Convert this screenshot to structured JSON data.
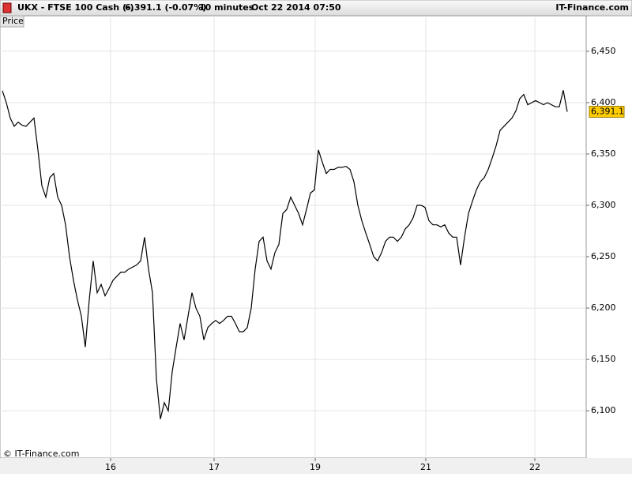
{
  "header": {
    "symbol": "UKX - FTSE 100 Cash (-)",
    "quote": "6,391.1 (-0.07%)",
    "interval": "10 minutes",
    "datetime": "Oct 22 2014 07:50",
    "brand": "IT-Finance.com"
  },
  "footer": {
    "copyright": "© IT-Finance.com"
  },
  "chart_data": {
    "type": "line",
    "grid": true,
    "series": [
      {
        "name": "Price",
        "color": "#000000",
        "values": [
          6411.5,
          6400,
          6385,
          6377,
          6381,
          6378,
          6377,
          6381,
          6385,
          6354,
          6319,
          6308,
          6327,
          6331,
          6308,
          6300,
          6281,
          6250,
          6227,
          6208,
          6192,
          6162,
          6208,
          6246,
          6215,
          6223,
          6212,
          6219,
          6227,
          6231,
          6235,
          6235,
          6238,
          6240,
          6242,
          6246,
          6269,
          6238,
          6215,
          6131,
          6092,
          6108,
          6100,
          6138,
          6162,
          6185,
          6169,
          6192,
          6215,
          6200,
          6192,
          6169,
          6181,
          6185,
          6188,
          6185,
          6188,
          6192,
          6192,
          6185,
          6177,
          6177,
          6181,
          6200,
          6238,
          6265,
          6269,
          6246,
          6238,
          6254,
          6262,
          6292,
          6296,
          6308,
          6300,
          6292,
          6281,
          6296,
          6312,
          6315,
          6354,
          6342,
          6331,
          6335,
          6335,
          6337,
          6337,
          6338,
          6335,
          6323,
          6300,
          6285,
          6273,
          6262,
          6250,
          6246,
          6254,
          6265,
          6269,
          6269,
          6265,
          6269,
          6277,
          6281,
          6288,
          6300,
          6300,
          6298,
          6285,
          6281,
          6281,
          6279,
          6281,
          6273,
          6269,
          6269,
          6242,
          6269,
          6292,
          6304,
          6315,
          6323,
          6327,
          6335,
          6346,
          6358,
          6373,
          6377,
          6381,
          6385,
          6392,
          6404,
          6408,
          6398,
          6400,
          6402,
          6400,
          6398,
          6400,
          6398,
          6396,
          6396,
          6412,
          6391.1
        ]
      }
    ],
    "last_label": {
      "value": 6391.1,
      "label": "6,391.1"
    },
    "xlim": [
      -0.6,
      147.8
    ],
    "xticks": [
      {
        "value": 27.4,
        "label": "16"
      },
      {
        "value": 53.6,
        "label": "17"
      },
      {
        "value": 79.2,
        "label": "19"
      },
      {
        "value": 107.2,
        "label": "21"
      },
      {
        "value": 134.8,
        "label": "22"
      }
    ],
    "ylim": [
      6054,
      6483
    ],
    "yticks": [
      {
        "value": 6100,
        "label": "6,100"
      },
      {
        "value": 6150,
        "label": "6,150"
      },
      {
        "value": 6200,
        "label": "6,200"
      },
      {
        "value": 6250,
        "label": "6,250"
      },
      {
        "value": 6300,
        "label": "6,300"
      },
      {
        "value": 6350,
        "label": "6,350"
      },
      {
        "value": 6400,
        "label": "6,400"
      },
      {
        "value": 6450,
        "label": "6,450"
      }
    ]
  }
}
